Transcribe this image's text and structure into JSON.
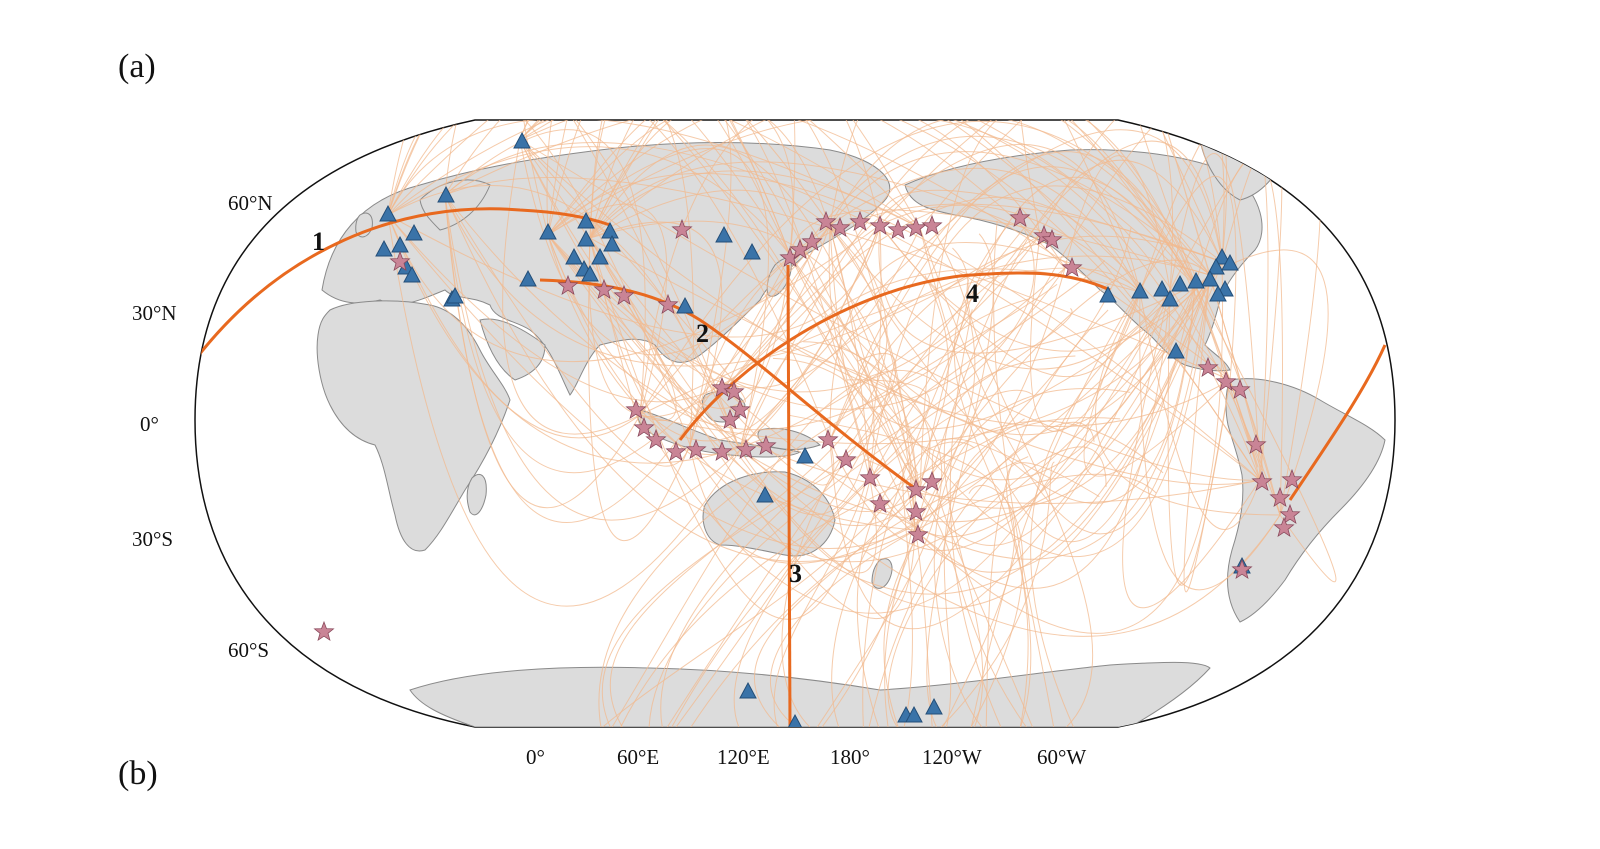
{
  "panel_labels": [
    "(a)",
    "(b)"
  ],
  "lat_labels": [
    "60°N",
    "30°N",
    "0°",
    "30°S",
    "60°S"
  ],
  "lon_labels": [
    "0°",
    "60°E",
    "120°E",
    "180°",
    "120°W",
    "60°W"
  ],
  "path_labels": [
    "1",
    "2",
    "3",
    "4"
  ],
  "colors": {
    "ocean": "#ffffff",
    "land": "#dcdcdc",
    "coast": "#8a8a8a",
    "ray_faint": "#f2b98f",
    "ray_bold": "#e8691f",
    "station": "#3a73a8",
    "event": "#c98496"
  },
  "legend_symbols": {
    "station": "blue-triangle",
    "event": "pink-star"
  }
}
